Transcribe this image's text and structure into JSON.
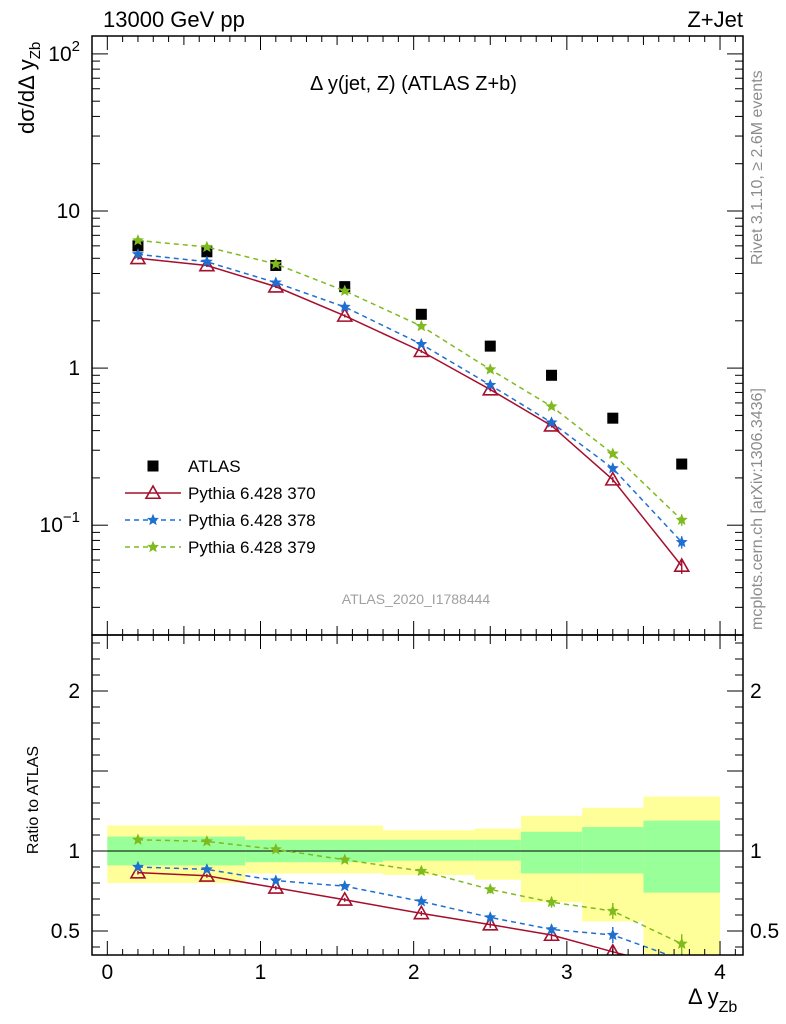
{
  "header": {
    "left": "13000 GeV pp",
    "right": "Z+Jet"
  },
  "side_labels": {
    "rivet": "Rivet 3.1.10, ≥ 2.6M events",
    "source": "mcplots.cern.ch [arXiv:1306.3436]"
  },
  "watermark": "ATLAS_2020_I1788444",
  "colors": {
    "data": "#000000",
    "p370": "#a50f2d",
    "p378": "#1f6fd1",
    "p379": "#7fba1e",
    "band_inner": "#99ff99",
    "band_outer": "#ffff99"
  },
  "chart_data": [
    {
      "type": "scatter",
      "title": "Δ y(jet, Z) (ATLAS Z+b)",
      "xlabel": "Δ y",
      "xlabel_sub": "Zb",
      "ylabel": "dσ/dΔ y",
      "ylabel_sub": "Zb",
      "yscale": "log",
      "xlim": [
        -0.1,
        4.15
      ],
      "ylim": [
        0.02,
        130
      ],
      "ytick_labels": [
        {
          "value": 100,
          "mantissa": "10",
          "exponent": "2"
        },
        {
          "value": 10,
          "mantissa": "10",
          "exponent": ""
        },
        {
          "value": 1,
          "mantissa": "1",
          "exponent": ""
        },
        {
          "value": 0.1,
          "mantissa": "10",
          "exponent": "−1"
        }
      ],
      "legend_position": "lower-left",
      "x_centers": [
        0.2,
        0.65,
        1.1,
        1.55,
        2.05,
        2.5,
        2.9,
        3.3,
        3.75
      ],
      "series": [
        {
          "name": "ATLAS",
          "marker": "square",
          "values": [
            6.0,
            5.5,
            4.5,
            3.3,
            2.2,
            1.38,
            0.9,
            0.48,
            0.245
          ],
          "errors": [
            0,
            0,
            0,
            0,
            0,
            0,
            0,
            0,
            0
          ]
        },
        {
          "name": "Pythia 6.428 370",
          "marker": "open-triangle",
          "line": "solid",
          "values": [
            5.0,
            4.5,
            3.3,
            2.15,
            1.28,
            0.73,
            0.43,
            0.195,
            0.055
          ],
          "errors": [
            0.1,
            0.1,
            0.07,
            0.05,
            0.03,
            0.02,
            0.012,
            0.008,
            0.006
          ]
        },
        {
          "name": "Pythia 6.428 378",
          "marker": "star",
          "line": "dashed",
          "values": [
            5.3,
            4.75,
            3.5,
            2.45,
            1.42,
            0.78,
            0.45,
            0.23,
            0.078
          ],
          "errors": [
            0.1,
            0.1,
            0.07,
            0.05,
            0.03,
            0.02,
            0.012,
            0.01,
            0.007
          ]
        },
        {
          "name": "Pythia 6.428 379",
          "marker": "star",
          "line": "dashed",
          "values": [
            6.5,
            5.9,
            4.6,
            3.1,
            1.85,
            0.98,
            0.57,
            0.285,
            0.108
          ],
          "errors": [
            0.1,
            0.1,
            0.08,
            0.06,
            0.04,
            0.02,
            0.015,
            0.012,
            0.009
          ]
        }
      ]
    },
    {
      "type": "line",
      "ylabel": "Ratio to ATLAS",
      "xlabel": "Δ y",
      "xlabel_sub": "Zb",
      "xlim": [
        -0.1,
        4.15
      ],
      "ylim": [
        0.35,
        2.35
      ],
      "xticks": [
        0,
        1,
        2,
        3,
        4
      ],
      "yticks": [
        0.5,
        1,
        2
      ],
      "bin_edges": [
        0,
        0.9,
        1.8,
        2.7,
        3.5,
        4.0
      ],
      "band_bin_edges": [
        0,
        0.9,
        1.8,
        2.4,
        2.7,
        3.1,
        3.5,
        4.0
      ],
      "band_inner": {
        "lower": [
          0.91,
          0.93,
          0.94,
          0.94,
          0.86,
          0.86,
          0.74
        ],
        "upper": [
          1.09,
          1.07,
          1.07,
          1.07,
          1.12,
          1.15,
          1.19
        ]
      },
      "band_outer": {
        "lower": [
          0.8,
          0.86,
          0.85,
          0.82,
          0.68,
          0.56,
          0.35
        ],
        "upper": [
          1.16,
          1.16,
          1.13,
          1.14,
          1.22,
          1.27,
          1.34
        ]
      },
      "x_centers": [
        0.2,
        0.65,
        1.1,
        1.55,
        2.05,
        2.5,
        2.9,
        3.3,
        3.75
      ],
      "series": [
        {
          "name": "Pythia 6.428 370",
          "values": [
            0.865,
            0.845,
            0.77,
            0.695,
            0.61,
            0.54,
            0.475,
            0.37,
            0.26
          ],
          "errors": [
            0.012,
            0.012,
            0.012,
            0.012,
            0.015,
            0.02,
            0.03,
            0.04,
            0.04
          ]
        },
        {
          "name": "Pythia 6.428 378",
          "values": [
            0.9,
            0.885,
            0.815,
            0.78,
            0.685,
            0.585,
            0.51,
            0.475,
            0.32
          ],
          "errors": [
            0.012,
            0.012,
            0.012,
            0.015,
            0.02,
            0.025,
            0.03,
            0.05,
            0.04
          ]
        },
        {
          "name": "Pythia 6.428 379",
          "values": [
            1.07,
            1.06,
            1.01,
            0.945,
            0.875,
            0.76,
            0.68,
            0.625,
            0.42
          ],
          "errors": [
            0.012,
            0.012,
            0.012,
            0.015,
            0.02,
            0.025,
            0.035,
            0.05,
            0.06
          ]
        }
      ]
    }
  ]
}
